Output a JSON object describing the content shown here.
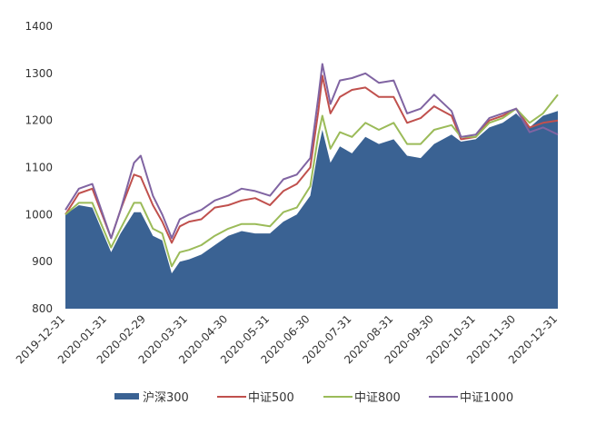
{
  "chart_data": {
    "type": "area",
    "xlabel": "",
    "ylabel": "",
    "ylim": [
      800,
      1400
    ],
    "yticks": [
      "800",
      "900",
      "1000",
      "1100",
      "1200",
      "1300",
      "1400"
    ],
    "xticks": [
      "2019-12-31",
      "2020-01-31",
      "2020-02-29",
      "2020-03-31",
      "2020-04-30",
      "2020-05-31",
      "2020-06-30",
      "2020-07-31",
      "2020-08-31",
      "2020-09-30",
      "2020-10-31",
      "2020-11-30",
      "2020-12-31"
    ],
    "grid": false,
    "legend_position": "bottom",
    "x": [
      "2019-12-31",
      "2020-01-10",
      "2020-01-20",
      "2020-02-03",
      "2020-02-10",
      "2020-02-20",
      "2020-02-25",
      "2020-03-05",
      "2020-03-12",
      "2020-03-19",
      "2020-03-25",
      "2020-04-01",
      "2020-04-10",
      "2020-04-20",
      "2020-04-30",
      "2020-05-10",
      "2020-05-20",
      "2020-05-31",
      "2020-06-10",
      "2020-06-20",
      "2020-06-30",
      "2020-07-06",
      "2020-07-09",
      "2020-07-15",
      "2020-07-22",
      "2020-07-31",
      "2020-08-10",
      "2020-08-20",
      "2020-08-31",
      "2020-09-10",
      "2020-09-20",
      "2020-09-30",
      "2020-10-13",
      "2020-10-20",
      "2020-10-31",
      "2020-11-10",
      "2020-11-20",
      "2020-11-30",
      "2020-12-10",
      "2020-12-20",
      "2020-12-31"
    ],
    "series": [
      {
        "name": "沪深300",
        "style": "area",
        "color": "#3a6293",
        "values": [
          1000,
          1020,
          1015,
          920,
          960,
          1005,
          1005,
          955,
          945,
          875,
          900,
          905,
          915,
          935,
          955,
          965,
          960,
          960,
          985,
          1000,
          1040,
          1140,
          1180,
          1110,
          1145,
          1130,
          1165,
          1150,
          1160,
          1125,
          1120,
          1150,
          1170,
          1155,
          1160,
          1185,
          1195,
          1215,
          1185,
          1210,
          1220
        ]
      },
      {
        "name": "中证500",
        "style": "line",
        "color": "#c0504d",
        "values": [
          1000,
          1045,
          1055,
          950,
          1010,
          1085,
          1080,
          1020,
          985,
          940,
          975,
          985,
          990,
          1015,
          1020,
          1030,
          1035,
          1020,
          1050,
          1065,
          1100,
          1220,
          1295,
          1215,
          1250,
          1265,
          1270,
          1250,
          1250,
          1195,
          1205,
          1230,
          1210,
          1160,
          1165,
          1200,
          1210,
          1225,
          1185,
          1195,
          1200
        ]
      },
      {
        "name": "中证800",
        "style": "line",
        "color": "#9bbb59",
        "values": [
          1000,
          1025,
          1025,
          930,
          970,
          1025,
          1025,
          970,
          960,
          890,
          920,
          925,
          935,
          955,
          970,
          980,
          980,
          975,
          1005,
          1015,
          1060,
          1170,
          1210,
          1140,
          1175,
          1165,
          1195,
          1180,
          1195,
          1150,
          1150,
          1180,
          1190,
          1165,
          1165,
          1195,
          1205,
          1225,
          1195,
          1215,
          1255
        ]
      },
      {
        "name": "中证1000",
        "style": "line",
        "color": "#8064a2",
        "values": [
          1010,
          1055,
          1065,
          950,
          1010,
          1110,
          1125,
          1040,
          1000,
          950,
          990,
          1000,
          1010,
          1030,
          1040,
          1055,
          1050,
          1040,
          1075,
          1085,
          1120,
          1250,
          1320,
          1235,
          1285,
          1290,
          1300,
          1280,
          1285,
          1215,
          1225,
          1255,
          1220,
          1165,
          1170,
          1205,
          1215,
          1225,
          1175,
          1185,
          1170
        ]
      }
    ]
  }
}
